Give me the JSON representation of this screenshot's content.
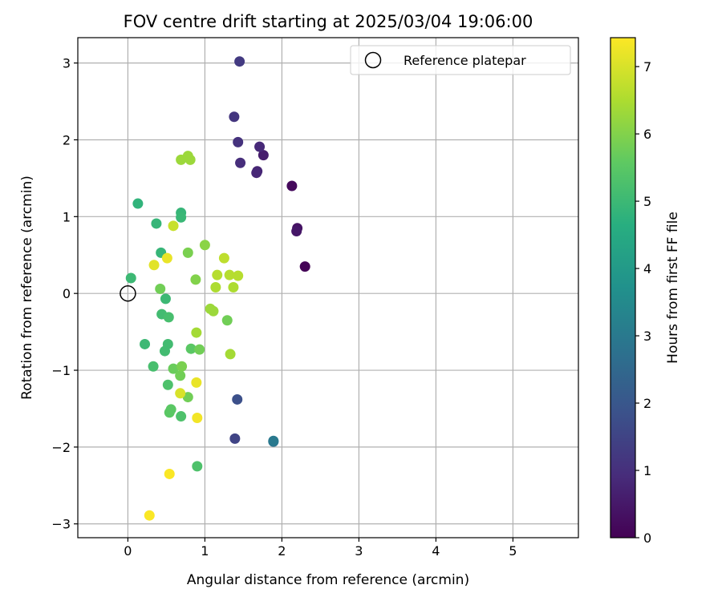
{
  "chart_data": {
    "type": "scatter",
    "title": "FOV centre drift starting at 2025/03/04 19:06:00",
    "xlabel": "Angular distance from reference (arcmin)",
    "ylabel": "Rotation from reference (arcmin)",
    "xlim": [
      -0.65,
      5.85
    ],
    "ylim": [
      -3.18,
      3.33
    ],
    "xticks": [
      0,
      1,
      2,
      3,
      4,
      5
    ],
    "yticks": [
      -3,
      -2,
      -1,
      0,
      1,
      2,
      3
    ],
    "grid": true,
    "legend": {
      "location": "upper right",
      "entries": [
        "Reference platepar"
      ]
    },
    "reference_point": {
      "x": 0,
      "y": 0
    },
    "colorbar": {
      "label": "Hours from first FF file",
      "colormap": "viridis",
      "range": [
        0,
        7.43
      ],
      "ticks": [
        0,
        1,
        2,
        3,
        4,
        5,
        6,
        7
      ]
    },
    "points": [
      {
        "x": 2.3,
        "y": 0.35,
        "c": 0.05
      },
      {
        "x": 2.13,
        "y": 1.4,
        "c": 0.2
      },
      {
        "x": 2.2,
        "y": 0.85,
        "c": 0.35
      },
      {
        "x": 2.19,
        "y": 0.81,
        "c": 0.45
      },
      {
        "x": 1.76,
        "y": 1.8,
        "c": 0.6
      },
      {
        "x": 1.68,
        "y": 1.59,
        "c": 0.75
      },
      {
        "x": 1.67,
        "y": 1.57,
        "c": 0.8
      },
      {
        "x": 1.71,
        "y": 1.91,
        "c": 0.85
      },
      {
        "x": 1.46,
        "y": 1.7,
        "c": 0.95
      },
      {
        "x": 1.43,
        "y": 1.97,
        "c": 1.05
      },
      {
        "x": 1.38,
        "y": 2.3,
        "c": 1.15
      },
      {
        "x": 1.45,
        "y": 3.02,
        "c": 1.25
      },
      {
        "x": 1.39,
        "y": -1.89,
        "c": 1.5
      },
      {
        "x": 1.42,
        "y": -1.38,
        "c": 1.8
      },
      {
        "x": 1.89,
        "y": -1.93,
        "c": 2.8
      },
      {
        "x": 1.89,
        "y": -1.92,
        "c": 3.0
      },
      {
        "x": 0.13,
        "y": 1.17,
        "c": 4.8
      },
      {
        "x": 0.37,
        "y": 0.91,
        "c": 4.9
      },
      {
        "x": 0.69,
        "y": 1.05,
        "c": 4.9
      },
      {
        "x": 0.69,
        "y": 0.99,
        "c": 4.95
      },
      {
        "x": 0.43,
        "y": 0.53,
        "c": 4.9
      },
      {
        "x": 0.04,
        "y": 0.2,
        "c": 5.0
      },
      {
        "x": 0.49,
        "y": -0.07,
        "c": 5.0
      },
      {
        "x": 0.44,
        "y": -0.27,
        "c": 5.1
      },
      {
        "x": 0.53,
        "y": -0.31,
        "c": 5.2
      },
      {
        "x": 0.22,
        "y": -0.66,
        "c": 5.0
      },
      {
        "x": 0.52,
        "y": -0.66,
        "c": 5.1
      },
      {
        "x": 0.48,
        "y": -0.75,
        "c": 5.1
      },
      {
        "x": 0.33,
        "y": -0.95,
        "c": 5.2
      },
      {
        "x": 0.52,
        "y": -1.19,
        "c": 5.3
      },
      {
        "x": 0.69,
        "y": -1.6,
        "c": 5.3
      },
      {
        "x": 0.56,
        "y": -1.51,
        "c": 5.5
      },
      {
        "x": 0.54,
        "y": -1.55,
        "c": 5.5
      },
      {
        "x": 0.9,
        "y": -2.25,
        "c": 5.3
      },
      {
        "x": 0.82,
        "y": -0.72,
        "c": 5.5
      },
      {
        "x": 0.93,
        "y": -0.73,
        "c": 5.8
      },
      {
        "x": 0.59,
        "y": -0.98,
        "c": 5.7
      },
      {
        "x": 0.68,
        "y": -1.07,
        "c": 5.8
      },
      {
        "x": 0.7,
        "y": -0.95,
        "c": 5.9
      },
      {
        "x": 0.78,
        "y": -1.35,
        "c": 5.8
      },
      {
        "x": 0.42,
        "y": 0.06,
        "c": 5.8
      },
      {
        "x": 0.78,
        "y": 0.53,
        "c": 5.9
      },
      {
        "x": 0.88,
        "y": 0.18,
        "c": 6.0
      },
      {
        "x": 1.29,
        "y": -0.35,
        "c": 5.8
      },
      {
        "x": 1.0,
        "y": 0.63,
        "c": 6.1
      },
      {
        "x": 0.69,
        "y": 1.74,
        "c": 6.3
      },
      {
        "x": 0.78,
        "y": 1.79,
        "c": 6.3
      },
      {
        "x": 0.81,
        "y": 1.74,
        "c": 6.3
      },
      {
        "x": 1.07,
        "y": -0.2,
        "c": 6.3
      },
      {
        "x": 1.11,
        "y": -0.23,
        "c": 6.3
      },
      {
        "x": 0.89,
        "y": -0.51,
        "c": 6.4
      },
      {
        "x": 1.33,
        "y": -0.79,
        "c": 6.4
      },
      {
        "x": 1.14,
        "y": 0.08,
        "c": 6.5
      },
      {
        "x": 1.37,
        "y": 0.08,
        "c": 6.5
      },
      {
        "x": 1.16,
        "y": 0.24,
        "c": 6.6
      },
      {
        "x": 1.32,
        "y": 0.24,
        "c": 6.6
      },
      {
        "x": 1.43,
        "y": 0.23,
        "c": 6.6
      },
      {
        "x": 1.25,
        "y": 0.46,
        "c": 6.7
      },
      {
        "x": 0.59,
        "y": 0.88,
        "c": 6.8
      },
      {
        "x": 0.68,
        "y": -1.3,
        "c": 7.0
      },
      {
        "x": 0.89,
        "y": -1.16,
        "c": 7.2
      },
      {
        "x": 0.34,
        "y": 0.37,
        "c": 7.1
      },
      {
        "x": 0.51,
        "y": 0.46,
        "c": 7.2
      },
      {
        "x": 0.9,
        "y": -1.62,
        "c": 7.3
      },
      {
        "x": 0.54,
        "y": -2.35,
        "c": 7.4
      },
      {
        "x": 0.28,
        "y": -2.89,
        "c": 7.4
      }
    ]
  }
}
